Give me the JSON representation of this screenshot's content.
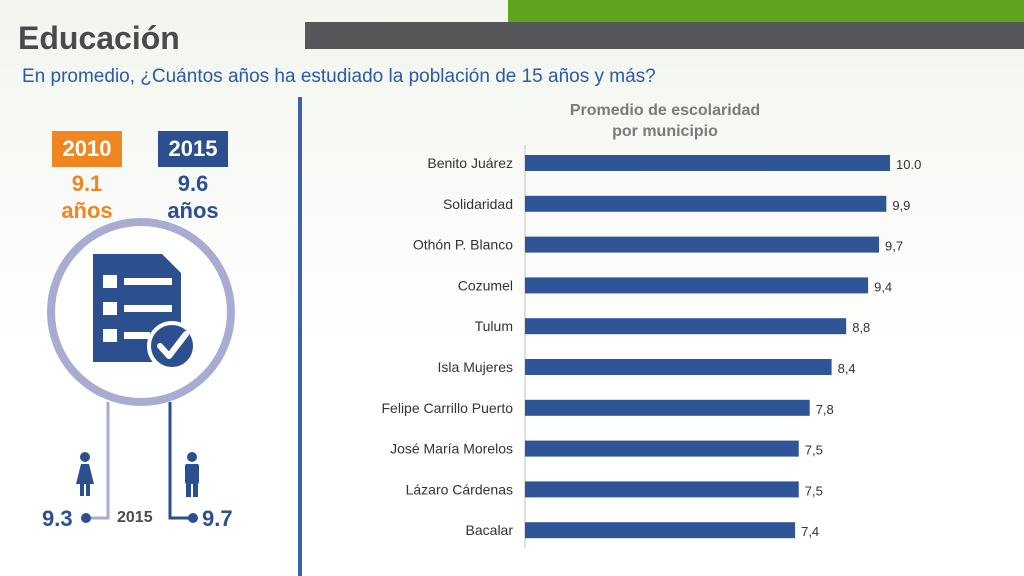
{
  "header": {
    "title": "Educación",
    "subtitle": "En promedio, ¿Cuántos años ha estudiado la población de 15 años y más?"
  },
  "summary": {
    "year_a": "2010",
    "value_a": "9.1",
    "unit_a": "años",
    "year_b": "2015",
    "value_b": "9.6",
    "unit_b": "años",
    "women_value": "9.3",
    "men_value": "9.7",
    "sex_year": "2015",
    "icon": "checklist-document-icon"
  },
  "colors": {
    "orange": "#f0861f",
    "navy": "#2b4f8f",
    "bar": "#2f5597",
    "green": "#5ea51d",
    "gray_band": "#565759"
  },
  "chart_data": {
    "type": "bar",
    "orientation": "horizontal",
    "title_line1": "Promedio de escolaridad",
    "title_line2": "por municipio",
    "categories": [
      "Benito Juárez",
      "Solidaridad",
      "Othón P. Blanco",
      "Cozumel",
      "Tulum",
      "Isla Mujeres",
      "Felipe Carrillo Puerto",
      "José María Morelos",
      "Lázaro Cárdenas",
      "Bacalar"
    ],
    "values": [
      10.0,
      9.9,
      9.7,
      9.4,
      8.8,
      8.4,
      7.8,
      7.5,
      7.5,
      7.4
    ],
    "data_labels": [
      "10.0",
      "9,9",
      "9,7",
      "9,4",
      "8,8",
      "8,4",
      "7,8",
      "7,5",
      "7,5",
      "7,4"
    ],
    "xlim": [
      0,
      10
    ],
    "grid": false,
    "legend": "none"
  }
}
